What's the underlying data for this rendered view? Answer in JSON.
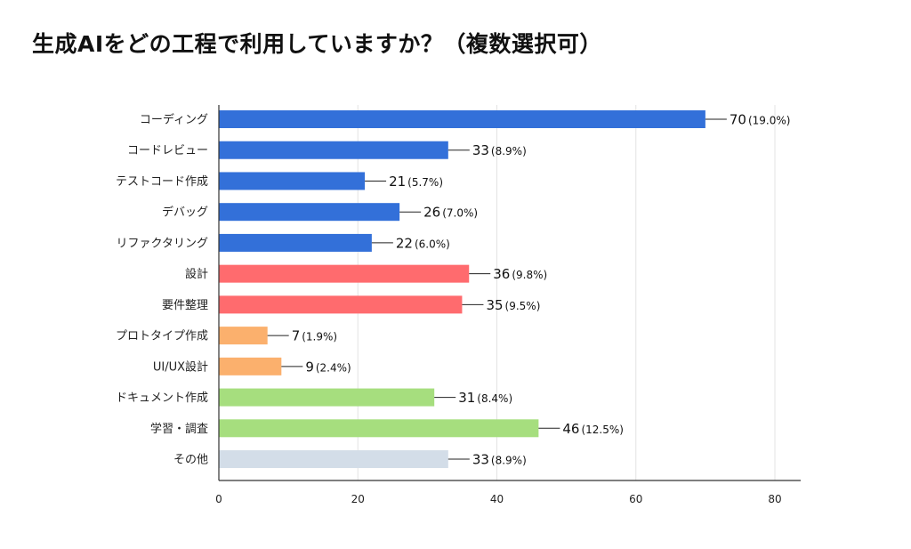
{
  "chart_data": {
    "type": "bar",
    "orientation": "horizontal",
    "title": "生成AIをどの工程で利用していますか？（複数選択可）",
    "xlabel": "",
    "ylabel": "",
    "xlim": [
      0,
      80
    ],
    "xticks": [
      0,
      20,
      40,
      60,
      80
    ],
    "grid": true,
    "legend": "none",
    "categories": [
      "コーディング",
      "コードレビュー",
      "テストコード作成",
      "デバッグ",
      "リファクタリング",
      "設計",
      "要件整理",
      "プロトタイプ作成",
      "UI/UX設計",
      "ドキュメント作成",
      "学習・調査",
      "その他"
    ],
    "values": [
      70,
      33,
      21,
      26,
      22,
      36,
      35,
      7,
      9,
      31,
      46,
      33
    ],
    "percent_labels": [
      "(19.0%)",
      "(8.9%)",
      "(5.7%)",
      "(7.0%)",
      "(6.0%)",
      "(9.8%)",
      "(9.5%)",
      "(1.9%)",
      "(2.4%)",
      "(8.4%)",
      "(12.5%)",
      "(8.9%)"
    ],
    "colors": [
      "#3370d9",
      "#3370d9",
      "#3370d9",
      "#3370d9",
      "#3370d9",
      "#ff6b6e",
      "#ff6b6e",
      "#fbb06d",
      "#fbb06d",
      "#a6de7e",
      "#a6de7e",
      "#d3dde8"
    ],
    "gridline_color": "#e3e3e3",
    "axis_color": "#333333"
  }
}
